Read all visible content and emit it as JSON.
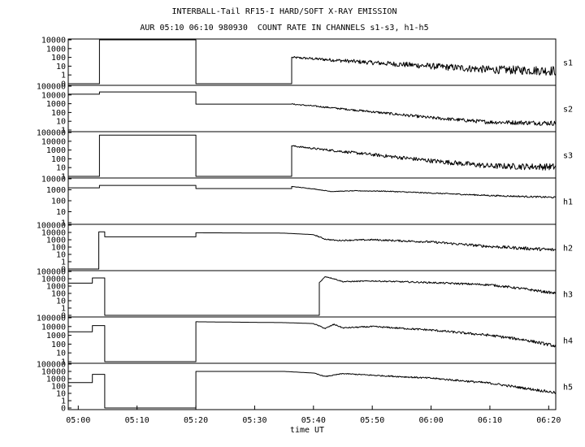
{
  "header": {
    "line1": "INTERBALL-Tail RF15-I HARD/SOFT X-RAY EMISSION",
    "line2": "AUR 05:10 06:10 980930  COUNT RATE IN CHANNELS s1-s3, h1-h5"
  },
  "chart_data": {
    "type": "line",
    "title": "INTERBALL-Tail RF15-I HARD/SOFT X-RAY EMISSION",
    "subtitle": "AUR 05:10 06:10 980930  COUNT RATE IN CHANNELS s1-s3, h1-h5",
    "xlabel": "time UT",
    "x_tick_labels": [
      "05:00",
      "05:10",
      "05:20",
      "05:30",
      "05:40",
      "05:50",
      "06:00",
      "06:10",
      "06:20"
    ],
    "x_ticks_minutes": [
      0,
      10,
      20,
      30,
      40,
      50,
      60,
      70,
      80
    ],
    "xlim_minutes": [
      -1.7,
      81.2
    ],
    "y_scale": "log",
    "grid": false,
    "panels": [
      {
        "channel": "s1",
        "ylim": [
          0.1,
          10000
        ],
        "y_tick_labels": [
          "10000",
          "1000",
          "100",
          "10",
          "1",
          "0"
        ],
        "noise": 0.28,
        "x": [
          -1.7,
          3.6,
          3.6,
          20.0,
          20.0,
          36.3,
          36.3,
          40,
          50,
          60,
          70,
          81.2
        ],
        "y": [
          0.1,
          0.1,
          10000,
          10000,
          0.1,
          0.1,
          100,
          70,
          25,
          10,
          4,
          3
        ]
      },
      {
        "channel": "s2",
        "ylim": [
          1,
          100000
        ],
        "y_tick_labels": [
          "100000",
          "10000",
          "1000",
          "100",
          "10",
          "1"
        ],
        "noise": 0.14,
        "x": [
          -1.7,
          3.6,
          3.6,
          20.0,
          20.0,
          36.3,
          40,
          50,
          60,
          70,
          81.2
        ],
        "y": [
          12000,
          12000,
          22000,
          22000,
          900,
          900,
          550,
          120,
          25,
          8,
          6
        ]
      },
      {
        "channel": "s3",
        "ylim": [
          1,
          100000
        ],
        "y_tick_labels": [
          "100000",
          "10000",
          "1000",
          "100",
          "10",
          "1"
        ],
        "noise": 0.2,
        "x": [
          -1.7,
          3.6,
          3.6,
          20.0,
          20.0,
          36.3,
          36.3,
          40,
          50,
          60,
          70,
          81.2
        ],
        "y": [
          1,
          1,
          50000,
          50000,
          1,
          1,
          3000,
          1500,
          300,
          60,
          15,
          12
        ]
      },
      {
        "channel": "h1",
        "ylim": [
          1,
          10000
        ],
        "y_tick_labels": [
          "10000",
          "1000",
          "100",
          "10",
          "1"
        ],
        "noise": 0.04,
        "x": [
          -1.7,
          3.6,
          3.6,
          20.0,
          20.0,
          36.3,
          36.3,
          40,
          43,
          47,
          52,
          60,
          70,
          81.2
        ],
        "y": [
          1500,
          1500,
          2500,
          2500,
          1300,
          1300,
          2000,
          1200,
          700,
          800,
          750,
          500,
          300,
          200
        ]
      },
      {
        "channel": "h2",
        "ylim": [
          0.1,
          100000
        ],
        "y_tick_labels": [
          "100000",
          "10000",
          "1000",
          "100",
          "10",
          "1",
          "0"
        ],
        "noise": 0.12,
        "x": [
          -1.7,
          3.5,
          3.5,
          4.5,
          4.5,
          20.0,
          20.0,
          35,
          40,
          42,
          44,
          50,
          60,
          70,
          81.2
        ],
        "y": [
          0.1,
          0.1,
          12000,
          12000,
          2500,
          2500,
          9000,
          8000,
          5000,
          1200,
          800,
          1000,
          500,
          120,
          40
        ]
      },
      {
        "channel": "h3",
        "ylim": [
          0.1,
          100000
        ],
        "y_tick_labels": [
          "100000",
          "10000",
          "1000",
          "100",
          "10",
          "1",
          "0"
        ],
        "noise": 0.09,
        "x": [
          -1.7,
          2.4,
          2.4,
          4.5,
          4.5,
          41.0,
          41.0,
          42.0,
          43.5,
          45,
          50,
          60,
          70,
          76,
          81.2
        ],
        "y": [
          2500,
          2500,
          13000,
          13000,
          0.1,
          0.1,
          3000,
          20000,
          10000,
          4000,
          5000,
          3000,
          1500,
          400,
          100
        ]
      },
      {
        "channel": "h4",
        "ylim": [
          1,
          100000
        ],
        "y_tick_labels": [
          "100000",
          "10000",
          "1000",
          "100",
          "10",
          "1"
        ],
        "noise": 0.09,
        "x": [
          -1.7,
          2.4,
          2.4,
          4.5,
          4.5,
          20.0,
          20.0,
          35,
          40,
          42,
          43.5,
          45,
          50,
          60,
          70,
          76,
          81.2
        ],
        "y": [
          2500,
          2500,
          13000,
          13000,
          1,
          1,
          35000,
          28000,
          22000,
          6000,
          18000,
          7000,
          10000,
          4000,
          1000,
          300,
          60
        ]
      },
      {
        "channel": "h5",
        "ylim": [
          0.1,
          100000
        ],
        "y_tick_labels": [
          "100000",
          "10000",
          "1000",
          "100",
          "10",
          "1",
          "0"
        ],
        "noise": 0.09,
        "x": [
          -1.7,
          2.4,
          2.4,
          4.5,
          4.5,
          20.0,
          20.0,
          35,
          40,
          42,
          45,
          50,
          60,
          70,
          76,
          81.2
        ],
        "y": [
          300,
          300,
          4000,
          4000,
          0.1,
          0.1,
          10000,
          10000,
          6000,
          2000,
          5000,
          3000,
          1200,
          250,
          50,
          12
        ]
      }
    ]
  }
}
